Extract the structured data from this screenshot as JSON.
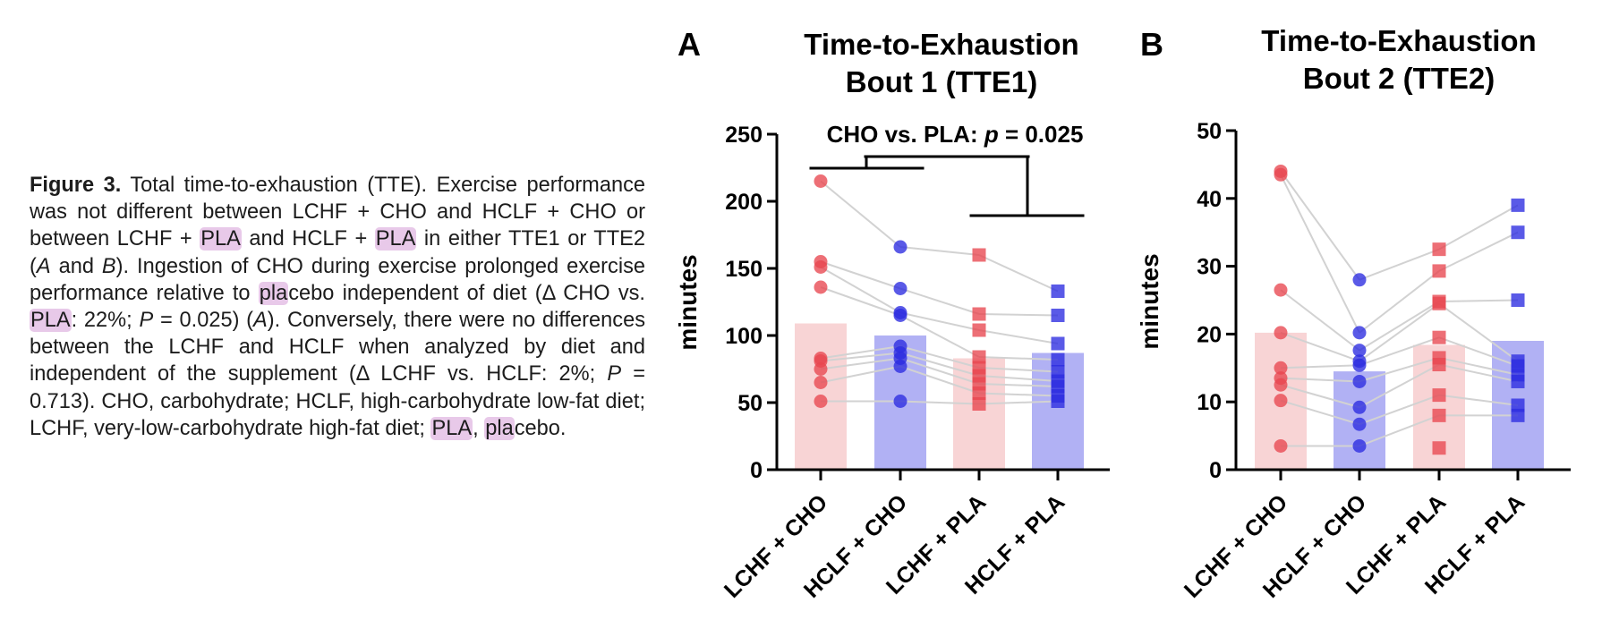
{
  "caption": {
    "label": "Figure 3.",
    "t1": " Total time-to-exhaustion (TTE). Exercise performance was not different between LCHF + CHO and HCLF + CHO or between LCHF + ",
    "pla1": "PLA",
    "t2": " and HCLF + ",
    "pla2": "PLA",
    "t3": " in either TTE1 or TTE2 (",
    "a1": "A",
    "t4": " and ",
    "b1": "B",
    "t5": "). Ingestion of CHO during exercise prolonged exercise performance relative to ",
    "pla3": "pla",
    "t6": "cebo independent of diet (Δ CHO vs. ",
    "pla4": "PLA",
    "t7": ": 22%; ",
    "p1": "P",
    "t8": " = 0.025) (",
    "a2": "A",
    "t9": "). Conversely, there were no differences between the LCHF and HCLF when analyzed by diet and independent of the supplement (Δ LCHF vs. HCLF: 2%; ",
    "p2": "P",
    "t10": " = 0.713). CHO, carbohydrate; HCLF, high-carbohydrate low-fat diet; LCHF, very-low-carbohydrate high-fat diet; ",
    "pla5": "PLA",
    "t11": ", ",
    "pla6": "pla",
    "t12": "cebo."
  },
  "colors": {
    "red": "#e8474f",
    "blue": "#2b2be0",
    "red_bar": "#f8d4d5",
    "blue_bar": "#b1b1f4",
    "line": "#d2d2d2",
    "highlight": "#e8c9e9"
  },
  "chart_data": [
    {
      "type": "bar",
      "panel": "A",
      "title_line1": "Time-to-Exhaustion",
      "title_line2": "Bout 1 (TTE1)",
      "ylabel": "minutes",
      "ylim": [
        0,
        250
      ],
      "yticks": [
        "0",
        "50",
        "100",
        "150",
        "200",
        "250"
      ],
      "categories": [
        "LCHF + CHO",
        "HCLF + CHO",
        "LCHF + PLA",
        "HCLF + PLA"
      ],
      "category_markers": [
        "circle",
        "circle",
        "square",
        "square"
      ],
      "category_colors": [
        "red",
        "blue",
        "red",
        "blue"
      ],
      "means": [
        109,
        100,
        83,
        87
      ],
      "individual_points": [
        [
          215,
          155,
          151,
          136,
          83,
          81,
          75,
          65,
          51
        ],
        [
          166,
          135,
          117,
          115,
          92,
          87,
          83,
          77,
          51
        ],
        [
          160,
          116,
          104,
          84,
          76,
          70,
          64,
          57,
          49
        ],
        [
          133,
          115,
          94,
          82,
          73,
          66,
          62,
          55,
          51
        ]
      ],
      "annotation": {
        "prefix": "CHO vs. PLA: ",
        "p": "p",
        "suffix": " = 0.025"
      }
    },
    {
      "type": "bar",
      "panel": "B",
      "title_line1": "Time-to-Exhaustion",
      "title_line2": "Bout 2 (TTE2)",
      "ylabel": "minutes",
      "ylim": [
        0,
        50
      ],
      "yticks": [
        "0",
        "10",
        "20",
        "30",
        "40",
        "50"
      ],
      "categories": [
        "LCHF + CHO",
        "HCLF + CHO",
        "LCHF + PLA",
        "HCLF + PLA"
      ],
      "category_markers": [
        "circle",
        "circle",
        "square",
        "square"
      ],
      "category_colors": [
        "red",
        "blue",
        "red",
        "blue"
      ],
      "means": [
        20.2,
        14.5,
        18.4,
        19
      ],
      "individual_points": [
        [
          44,
          43.5,
          26.5,
          20.2,
          15,
          13.5,
          12.5,
          10.2,
          3.5
        ],
        [
          28,
          20.2,
          17.6,
          16,
          15.4,
          13,
          9.2,
          6.7,
          3.5
        ],
        [
          32.5,
          29.3,
          24.8,
          24.5,
          19.5,
          16.5,
          15.5,
          11,
          8,
          3.2
        ],
        [
          39,
          35,
          25,
          16,
          15.3,
          14,
          13,
          9.5,
          8
        ]
      ]
    }
  ]
}
